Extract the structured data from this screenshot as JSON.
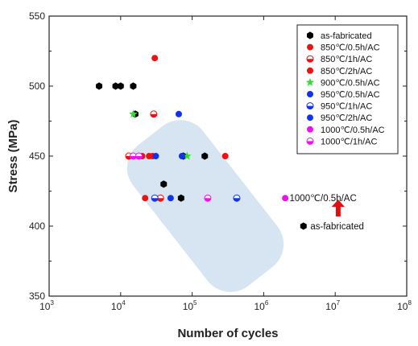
{
  "chart_data": {
    "type": "scatter",
    "title": "",
    "xlabel": "Number of cycles",
    "ylabel": "Stress (MPa)",
    "xscale": "log",
    "xlim": [
      1000,
      100000000
    ],
    "ylim": [
      350,
      550
    ],
    "x_ticks": [
      {
        "value": 1000,
        "base": "10",
        "exp": "3"
      },
      {
        "value": 10000,
        "base": "10",
        "exp": "4"
      },
      {
        "value": 100000,
        "base": "10",
        "exp": "5"
      },
      {
        "value": 1000000,
        "base": "10",
        "exp": "6"
      },
      {
        "value": 10000000,
        "base": "10",
        "exp": "7"
      },
      {
        "value": 100000000,
        "base": "10",
        "exp": "8"
      }
    ],
    "y_ticks": [
      "350",
      "400",
      "450",
      "500",
      "550"
    ],
    "grid": false,
    "legend_position": "top-right",
    "series": [
      {
        "name": "as-fabricated",
        "marker": "hexagon",
        "color": "#000000",
        "fill": "full",
        "points": [
          [
            5000,
            500
          ],
          [
            8500,
            500
          ],
          [
            10000,
            500
          ],
          [
            15000,
            500
          ],
          [
            16000,
            480
          ],
          [
            40000,
            430
          ],
          [
            75000,
            450
          ],
          [
            150000,
            450
          ],
          [
            70000,
            420
          ],
          [
            3600000,
            400
          ]
        ]
      },
      {
        "name": "850℃/0.5h/AC",
        "marker": "circle",
        "color": "#ee1111",
        "fill": "full",
        "points": [
          [
            30000,
            520
          ],
          [
            22000,
            420
          ],
          [
            28000,
            450
          ],
          [
            290000,
            450
          ]
        ]
      },
      {
        "name": "850℃/1h/AC",
        "marker": "circle",
        "color": "#ee1111",
        "fill": "half",
        "points": [
          [
            13000,
            450
          ],
          [
            29000,
            480
          ],
          [
            36000,
            420
          ]
        ]
      },
      {
        "name": "850℃/2h/AC",
        "marker": "circle",
        "color": "#ee1111",
        "fill": "full",
        "points": [
          [
            20000,
            450
          ],
          [
            25000,
            450
          ]
        ]
      },
      {
        "name": "900℃/0.5h/AC",
        "marker": "star",
        "color": "#33dd33",
        "fill": "full",
        "points": [
          [
            15000,
            480
          ],
          [
            85000,
            450
          ]
        ]
      },
      {
        "name": "950℃/0.5h/AC",
        "marker": "circle",
        "color": "#1133ee",
        "fill": "full",
        "points": [
          [
            65000,
            480
          ],
          [
            31000,
            450
          ]
        ]
      },
      {
        "name": "950℃/1h/AC",
        "marker": "circle",
        "color": "#1133ee",
        "fill": "half",
        "points": [
          [
            30000,
            420
          ],
          [
            420000,
            420
          ]
        ]
      },
      {
        "name": "950℃/2h/AC",
        "marker": "circle",
        "color": "#1133ee",
        "fill": "full",
        "points": [
          [
            50000,
            420
          ],
          [
            72000,
            450
          ]
        ]
      },
      {
        "name": "1000℃/0.5h/AC",
        "marker": "circle",
        "color": "#ee11ee",
        "fill": "full",
        "points": [
          [
            165000,
            420
          ],
          [
            2000000,
            420
          ]
        ]
      },
      {
        "name": "1000℃/1h/AC",
        "marker": "circle",
        "color": "#ee11ee",
        "fill": "half",
        "points": [
          [
            15000,
            450
          ],
          [
            18000,
            450
          ],
          [
            165000,
            420
          ]
        ]
      }
    ],
    "annotations": [
      {
        "text": "1000℃/0.5h/AC",
        "x": 2300000,
        "y": 420
      },
      {
        "text": "as-fabricated",
        "x": 4500000,
        "y": 400
      }
    ],
    "arrow": {
      "color": "#e01010",
      "x": 11000000,
      "y_from": 400,
      "y_to": 419
    }
  }
}
